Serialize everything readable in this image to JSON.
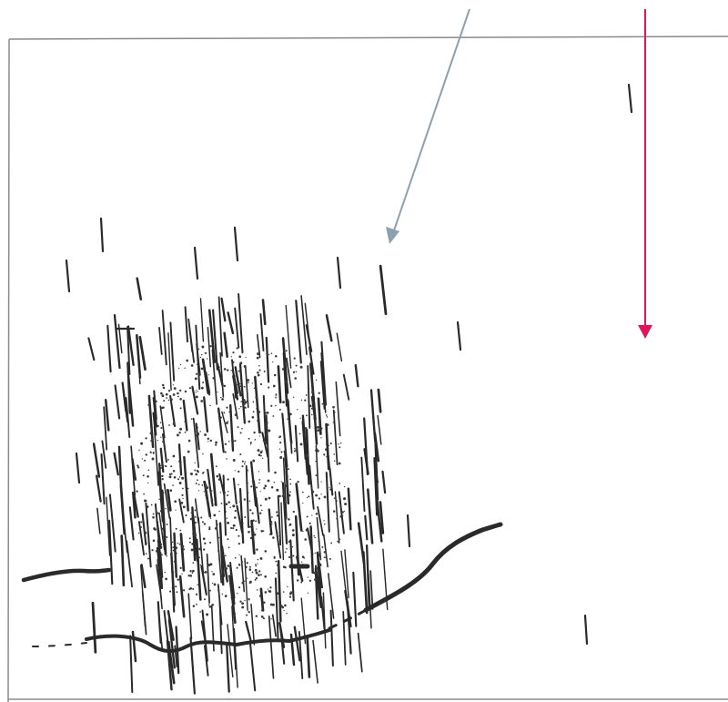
{
  "figure": {
    "background": "#ffffff",
    "ink_color": "#2a2a2a",
    "frame_color": "#8a8a8a",
    "annotations": [
      {
        "name": "gray-arrow",
        "color": "#8ea0ad"
      },
      {
        "name": "red-arrow",
        "color": "#e0145a"
      }
    ]
  }
}
